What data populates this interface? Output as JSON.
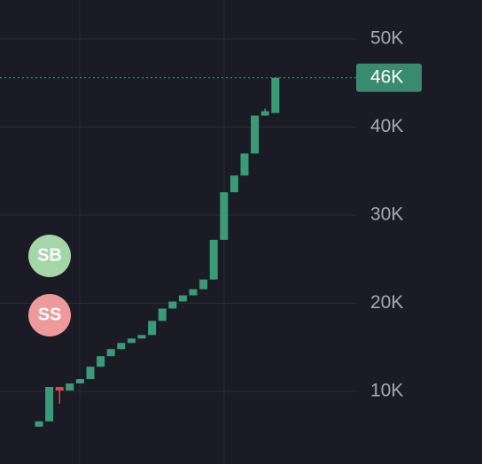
{
  "chart_data": {
    "type": "candlestick",
    "open": [
      6000,
      6600,
      10500,
      10100,
      10900,
      11400,
      12800,
      14000,
      14800,
      15500,
      16000,
      16400,
      18000,
      19400,
      20200,
      20900,
      21600,
      22700,
      27200,
      32600,
      34500,
      37000,
      41300,
      41600
    ],
    "high": [
      6600,
      10500,
      10500,
      10900,
      11400,
      12800,
      14000,
      14800,
      15500,
      16000,
      16400,
      18000,
      19400,
      20200,
      20900,
      21600,
      22700,
      27200,
      32600,
      34500,
      37000,
      41300,
      42100,
      45600
    ],
    "low": [
      6000,
      6600,
      8600,
      10100,
      10900,
      11400,
      12800,
      14000,
      14800,
      15500,
      16000,
      16400,
      18000,
      19400,
      20200,
      20900,
      21600,
      22700,
      27200,
      32600,
      34500,
      37000,
      41300,
      41600
    ],
    "close": [
      6600,
      10500,
      10100,
      10900,
      11400,
      12800,
      14000,
      14800,
      15500,
      16000,
      16400,
      18000,
      19400,
      20200,
      20900,
      21600,
      22700,
      27200,
      32600,
      34500,
      37000,
      41300,
      41800,
      45600
    ],
    "up_color": "#3a9b78",
    "down_color": "#e0464b",
    "yticks": [
      {
        "value": 10000,
        "label": "10K"
      },
      {
        "value": 20000,
        "label": "20K"
      },
      {
        "value": 30000,
        "label": "30K"
      },
      {
        "value": 40000,
        "label": "40K"
      },
      {
        "value": 50000,
        "label": "50K"
      }
    ],
    "grid": true,
    "last_price": {
      "value": 45600,
      "label": "46K"
    },
    "buttons": [
      {
        "label": "SB",
        "color": "#a5d6a7"
      },
      {
        "label": "SS",
        "color": "#ef9a9a"
      }
    ]
  }
}
